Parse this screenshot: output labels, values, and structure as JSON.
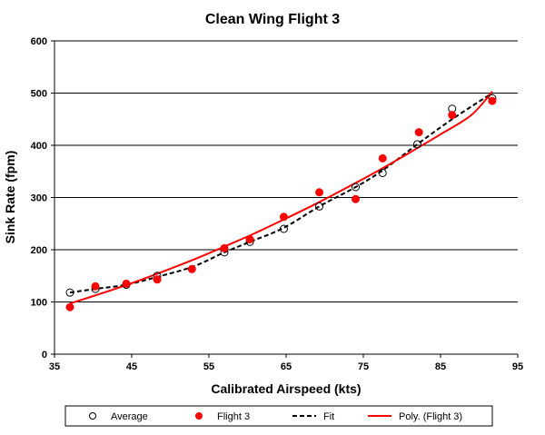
{
  "chart_data": {
    "type": "scatter",
    "title": "Clean Wing Flight 3",
    "xlabel": "Calibrated Airspeed (kts)",
    "ylabel": "Sink Rate (fpm)",
    "xlim": [
      35,
      95
    ],
    "ylim": [
      0,
      600
    ],
    "xticks": [
      35,
      45,
      55,
      65,
      75,
      85,
      95
    ],
    "yticks": [
      0,
      100,
      200,
      300,
      400,
      500,
      600
    ],
    "grid": "horizontal",
    "legend_position": "bottom",
    "series": [
      {
        "name": "Average",
        "kind": "hollow-circle-markers",
        "color": "#000000",
        "x": [
          37,
          40.3,
          44.3,
          48.3,
          57,
          60.3,
          64.7,
          69.3,
          74,
          77.5,
          82,
          86.5,
          91.7
        ],
        "y": [
          118,
          125,
          133,
          150,
          195,
          215,
          240,
          283,
          320,
          347,
          402,
          470,
          490
        ]
      },
      {
        "name": "Flight 3",
        "kind": "filled-circle-markers",
        "color": "#ff0000",
        "x": [
          37,
          40.3,
          44.3,
          48.3,
          52.8,
          57,
          60.3,
          64.7,
          69.3,
          74,
          77.5,
          82.2,
          86.5,
          91.7
        ],
        "y": [
          90,
          130,
          135,
          143,
          163,
          203,
          220,
          263,
          310,
          297,
          375,
          425,
          458,
          485
        ]
      },
      {
        "name": "Fit",
        "kind": "dashed-line",
        "color": "#000000",
        "x": [
          37,
          40.3,
          44.3,
          48.3,
          53,
          57,
          60.3,
          64.7,
          69.3,
          74,
          77.5,
          82,
          86.5,
          91.7
        ],
        "y": [
          118,
          125,
          133,
          148,
          168,
          195,
          215,
          242,
          283,
          320,
          352,
          402,
          450,
          500
        ]
      },
      {
        "name": "Poly. (Flight 3)",
        "kind": "solid-line",
        "color": "#ff0000",
        "x": [
          37,
          41,
          45,
          49,
          53,
          57,
          61,
          65,
          69,
          73,
          77,
          81,
          85,
          89,
          91.7
        ],
        "y": [
          97,
          116,
          136,
          158,
          181,
          206,
          232,
          260,
          289,
          320,
          352,
          386,
          421,
          458,
          503
        ]
      }
    ]
  }
}
